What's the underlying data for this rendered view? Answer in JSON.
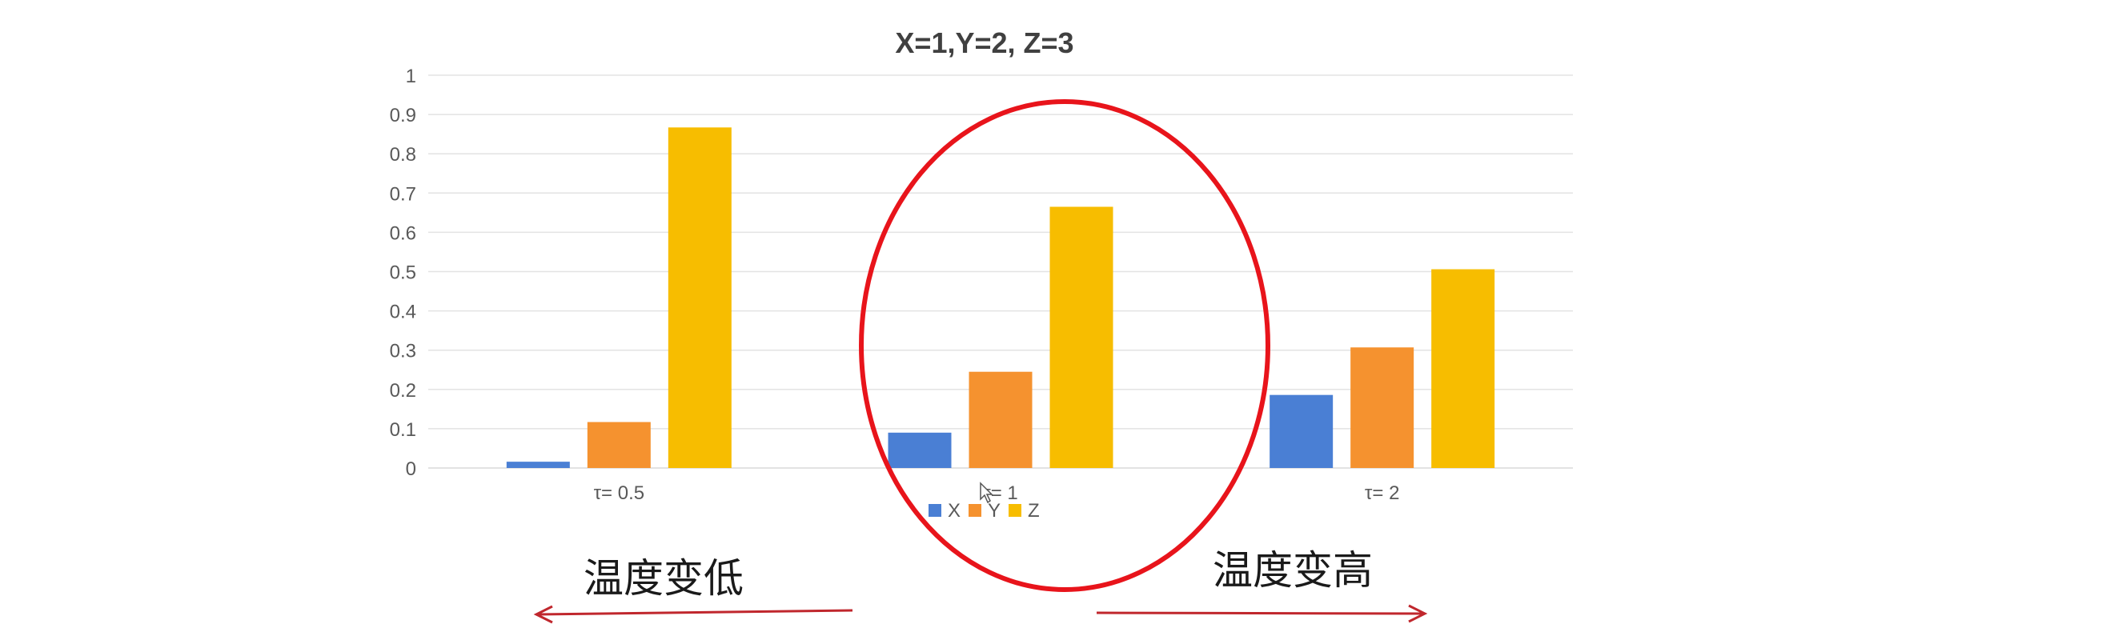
{
  "chart_data": {
    "type": "bar",
    "title": "X=1,Y=2, Z=3",
    "categories": [
      "τ= 0.5",
      "τ= 1",
      "τ= 2"
    ],
    "series": [
      {
        "name": "X",
        "color": "#4a7fd4",
        "values": [
          0.016,
          0.09,
          0.186
        ]
      },
      {
        "name": "Y",
        "color": "#f5922f",
        "values": [
          0.117,
          0.245,
          0.307
        ]
      },
      {
        "name": "Z",
        "color": "#f7bd00",
        "values": [
          0.867,
          0.665,
          0.506
        ]
      }
    ],
    "ylim": [
      0,
      1
    ],
    "yticks": [
      "0",
      "0.1",
      "0.2",
      "0.3",
      "0.4",
      "0.5",
      "0.6",
      "0.7",
      "0.8",
      "0.9",
      "1"
    ],
    "xlabel": "",
    "ylabel": "",
    "grid": true,
    "legend_position": "bottom"
  },
  "annotations": {
    "left_note": "温度变低",
    "right_note": "温度变高",
    "arrow_color": "#c0272d",
    "circle_color": "#e8141b"
  },
  "colors": {
    "gridline": "#e3e3e3",
    "axis_text": "#595959",
    "title_text": "#404040"
  }
}
